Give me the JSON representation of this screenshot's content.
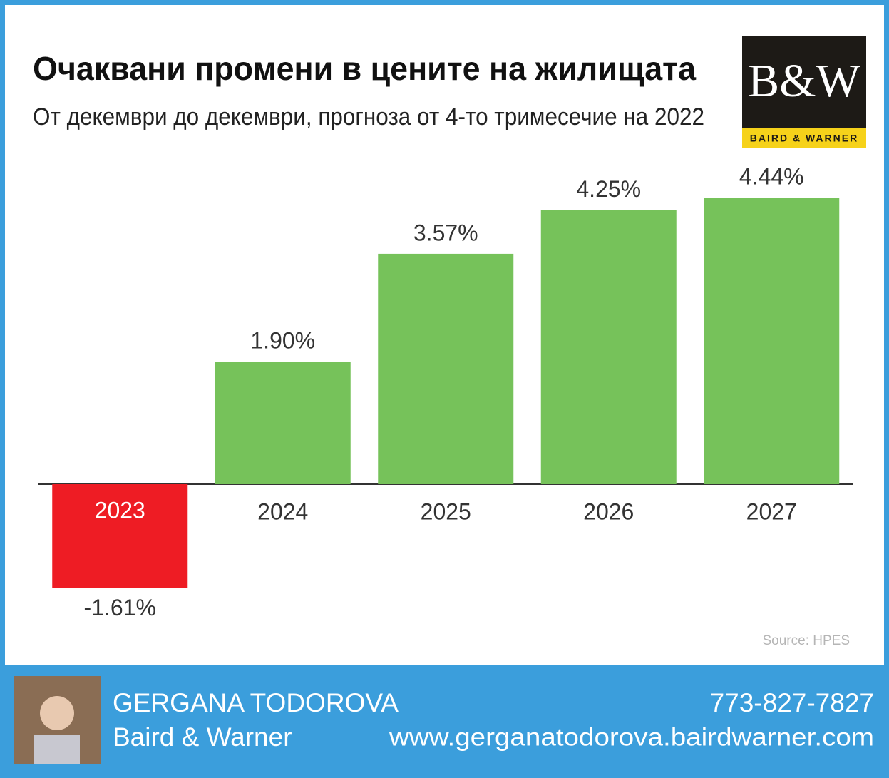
{
  "chart_data": {
    "type": "bar",
    "title": "Очаквани промени в цените на жилищата",
    "subtitle": "От декември до декември, прогноза от 4-то тримесечие на 2022",
    "categories": [
      "2023",
      "2024",
      "2025",
      "2026",
      "2027"
    ],
    "values": [
      -1.61,
      1.9,
      3.57,
      4.25,
      4.44
    ],
    "value_labels": [
      "-1.61%",
      "1.90%",
      "3.57%",
      "4.25%",
      "4.44%"
    ],
    "color": "#76c25a",
    "negative_color": "#ee1c24",
    "source": "Source: HPES"
  },
  "logo": {
    "mark": "B&W",
    "name": "BAIRD & WARNER"
  },
  "footer": {
    "agent": "GERGANA TODOROVA",
    "company": "Baird & Warner",
    "phone": "773-827-7827",
    "website": "www.gergana​todorova.bairdwarner.com"
  }
}
